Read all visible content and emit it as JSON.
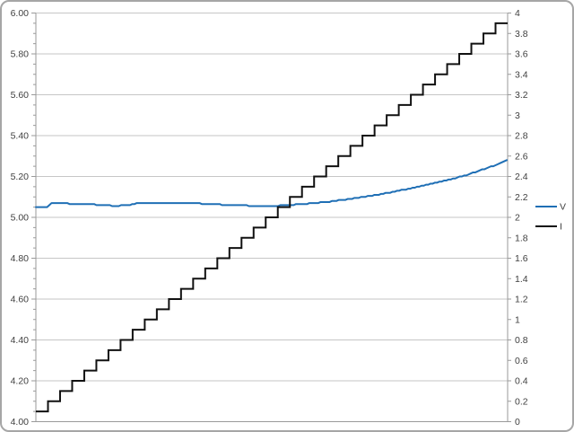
{
  "chart": {
    "background": "#ffffff",
    "border_color": "#a6a6a6",
    "gridline_color": "#c6c6c6",
    "axis_line_color": "#9a9a9a",
    "label_color": "#3f3f3f"
  },
  "chart_data": {
    "type": "line",
    "title": "",
    "grid": true,
    "legend_position": "right",
    "legend": [
      {
        "label": "V",
        "color": "#1f6fb5"
      },
      {
        "label": "I",
        "color": "#111111"
      }
    ],
    "left_axis": {
      "min": 4.0,
      "max": 6.0,
      "major": 0.2,
      "minor": 0.05,
      "tick_labels": [
        "6.00",
        "5.80",
        "5.60",
        "5.40",
        "5.20",
        "5.00",
        "4.80",
        "4.60",
        "4.40",
        "4.20",
        "4.00"
      ]
    },
    "right_axis": {
      "min": 0,
      "max": 4,
      "major": 0.2,
      "tick_labels": [
        "4",
        "3.8",
        "3.6",
        "3.4",
        "3.2",
        "3",
        "2.8",
        "2.6",
        "2.4",
        "2.2",
        "2",
        "1.8",
        "1.6",
        "1.4",
        "1.2",
        "1",
        "0.8",
        "0.6",
        "0.4",
        "0.2",
        "0"
      ]
    },
    "series": [
      {
        "name": "V",
        "axis": "left",
        "color": "#1f6fb5",
        "stroke_width": 2,
        "style": "line",
        "quantize": 0.005,
        "points": [
          [
            0.0,
            5.05
          ],
          [
            0.015,
            5.051
          ],
          [
            0.027,
            5.052
          ],
          [
            0.031,
            5.068
          ],
          [
            0.06,
            5.068
          ],
          [
            0.1,
            5.066
          ],
          [
            0.137,
            5.061
          ],
          [
            0.165,
            5.057
          ],
          [
            0.19,
            5.058
          ],
          [
            0.213,
            5.068
          ],
          [
            0.25,
            5.069
          ],
          [
            0.3,
            5.068
          ],
          [
            0.337,
            5.069
          ],
          [
            0.384,
            5.063
          ],
          [
            0.43,
            5.059
          ],
          [
            0.47,
            5.056
          ],
          [
            0.5,
            5.055
          ],
          [
            0.52,
            5.058
          ],
          [
            0.536,
            5.061
          ],
          [
            0.565,
            5.065
          ],
          [
            0.593,
            5.071
          ],
          [
            0.622,
            5.077
          ],
          [
            0.65,
            5.085
          ],
          [
            0.679,
            5.094
          ],
          [
            0.707,
            5.104
          ],
          [
            0.736,
            5.115
          ],
          [
            0.764,
            5.128
          ],
          [
            0.793,
            5.141
          ],
          [
            0.821,
            5.155
          ],
          [
            0.85,
            5.17
          ],
          [
            0.878,
            5.186
          ],
          [
            0.907,
            5.203
          ],
          [
            0.935,
            5.225
          ],
          [
            0.964,
            5.248
          ],
          [
            0.983,
            5.262
          ],
          [
            1.0,
            5.28
          ]
        ]
      },
      {
        "name": "I",
        "axis": "right",
        "color": "#111111",
        "stroke_width": 2,
        "style": "staircase",
        "level_start": 0.1,
        "level_end": 3.9,
        "level_step": 0.1
      }
    ]
  }
}
